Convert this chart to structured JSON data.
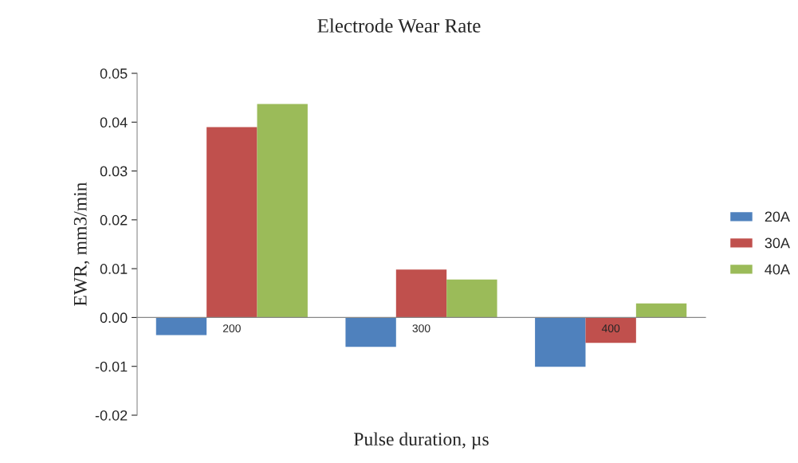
{
  "chart_data": {
    "type": "bar",
    "title": "Electrode Wear Rate",
    "xlabel": "Pulse duration, µs",
    "ylabel": "EWR, mm3/min",
    "categories": [
      "200",
      "300",
      "400"
    ],
    "series": [
      {
        "name": "20A",
        "color": "#4f81bd",
        "values": [
          -0.0036,
          -0.006,
          -0.0101
        ]
      },
      {
        "name": "30A",
        "color": "#c0504d",
        "values": [
          0.039,
          0.0098,
          -0.0052
        ]
      },
      {
        "name": "40A",
        "color": "#9bbb59",
        "values": [
          0.0437,
          0.0078,
          0.0029
        ]
      }
    ],
    "ylim": [
      -0.02,
      0.05
    ],
    "yticks": [
      {
        "value": -0.02,
        "label": "-0.02"
      },
      {
        "value": -0.01,
        "label": "-0.01"
      },
      {
        "value": 0,
        "label": "0.00"
      },
      {
        "value": 0.01,
        "label": "0.01"
      },
      {
        "value": 0.02,
        "label": "0.02"
      },
      {
        "value": 0.03,
        "label": "0.03"
      },
      {
        "value": 0.04,
        "label": "0.04"
      },
      {
        "value": 0.05,
        "label": "0.05"
      }
    ],
    "grid": false,
    "legend": "right"
  }
}
